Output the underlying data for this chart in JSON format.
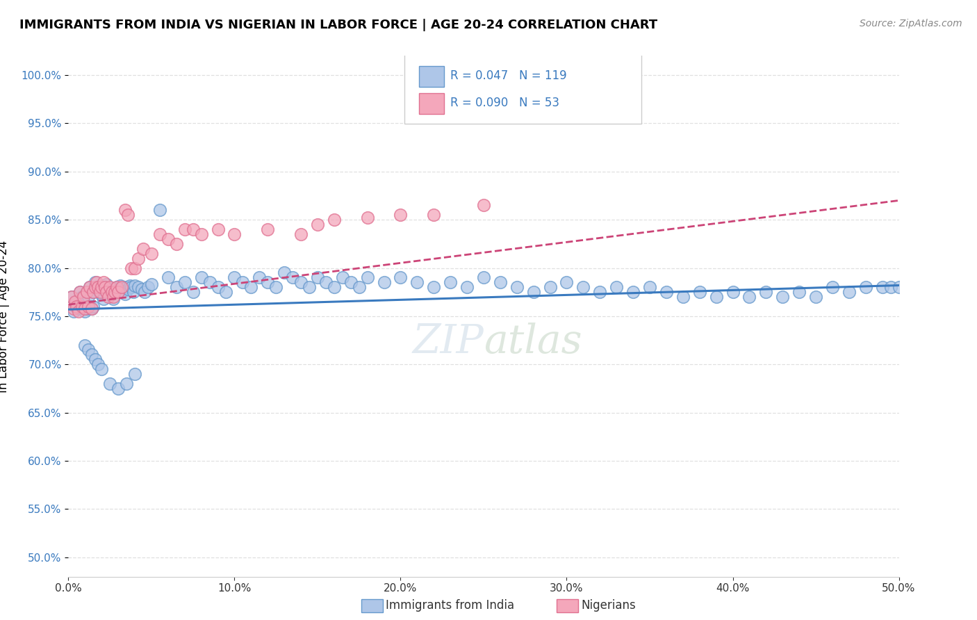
{
  "title": "IMMIGRANTS FROM INDIA VS NIGERIAN IN LABOR FORCE | AGE 20-24 CORRELATION CHART",
  "source": "Source: ZipAtlas.com",
  "ylabel": "In Labor Force | Age 20-24",
  "xlim": [
    0.0,
    0.5
  ],
  "ylim": [
    0.48,
    1.02
  ],
  "yticks": [
    0.5,
    0.55,
    0.6,
    0.65,
    0.7,
    0.75,
    0.8,
    0.85,
    0.9,
    0.95,
    1.0
  ],
  "ytick_labels": [
    "50.0%",
    "55.0%",
    "60.0%",
    "65.0%",
    "70.0%",
    "75.0%",
    "80.0%",
    "85.0%",
    "90.0%",
    "95.0%",
    "100.0%"
  ],
  "xticks": [
    0.0,
    0.1,
    0.2,
    0.3,
    0.4,
    0.5
  ],
  "xtick_labels": [
    "0.0%",
    "10.0%",
    "20.0%",
    "30.0%",
    "40.0%",
    "50.0%"
  ],
  "india_color": "#aec6e8",
  "nigeria_color": "#f4a7bb",
  "india_edge": "#6699cc",
  "nigeria_edge": "#e07090",
  "trendline_india_color": "#3a7abf",
  "trendline_nigeria_color": "#cc4477",
  "legend_india_label": "Immigrants from India",
  "legend_nigeria_label": "Nigerians",
  "R_india": 0.047,
  "N_india": 119,
  "R_nigeria": 0.09,
  "N_nigeria": 53,
  "india_x": [
    0.002,
    0.003,
    0.004,
    0.005,
    0.006,
    0.007,
    0.007,
    0.008,
    0.008,
    0.009,
    0.01,
    0.01,
    0.011,
    0.011,
    0.012,
    0.013,
    0.013,
    0.014,
    0.015,
    0.015,
    0.016,
    0.017,
    0.018,
    0.019,
    0.02,
    0.021,
    0.022,
    0.023,
    0.024,
    0.025,
    0.026,
    0.027,
    0.028,
    0.029,
    0.03,
    0.031,
    0.032,
    0.033,
    0.034,
    0.035,
    0.036,
    0.037,
    0.038,
    0.039,
    0.04,
    0.042,
    0.044,
    0.046,
    0.048,
    0.05,
    0.055,
    0.06,
    0.065,
    0.07,
    0.075,
    0.08,
    0.085,
    0.09,
    0.095,
    0.1,
    0.105,
    0.11,
    0.115,
    0.12,
    0.125,
    0.13,
    0.135,
    0.14,
    0.145,
    0.15,
    0.155,
    0.16,
    0.165,
    0.17,
    0.175,
    0.18,
    0.19,
    0.2,
    0.21,
    0.22,
    0.23,
    0.24,
    0.25,
    0.26,
    0.27,
    0.28,
    0.29,
    0.3,
    0.31,
    0.32,
    0.33,
    0.34,
    0.35,
    0.36,
    0.37,
    0.38,
    0.39,
    0.4,
    0.41,
    0.42,
    0.43,
    0.44,
    0.45,
    0.46,
    0.47,
    0.48,
    0.49,
    0.495,
    0.5,
    0.01,
    0.012,
    0.014,
    0.016,
    0.018,
    0.02,
    0.025,
    0.03,
    0.035,
    0.04
  ],
  "india_y": [
    0.77,
    0.755,
    0.76,
    0.765,
    0.758,
    0.775,
    0.76,
    0.77,
    0.758,
    0.765,
    0.755,
    0.76,
    0.775,
    0.758,
    0.77,
    0.76,
    0.78,
    0.758,
    0.775,
    0.76,
    0.785,
    0.78,
    0.778,
    0.775,
    0.772,
    0.768,
    0.78,
    0.783,
    0.778,
    0.775,
    0.772,
    0.768,
    0.775,
    0.78,
    0.778,
    0.782,
    0.779,
    0.776,
    0.773,
    0.78,
    0.778,
    0.782,
    0.78,
    0.775,
    0.782,
    0.78,
    0.778,
    0.775,
    0.78,
    0.783,
    0.86,
    0.79,
    0.78,
    0.785,
    0.775,
    0.79,
    0.785,
    0.78,
    0.775,
    0.79,
    0.785,
    0.78,
    0.79,
    0.785,
    0.78,
    0.795,
    0.79,
    0.785,
    0.78,
    0.79,
    0.785,
    0.78,
    0.79,
    0.785,
    0.78,
    0.79,
    0.785,
    0.79,
    0.785,
    0.78,
    0.785,
    0.78,
    0.79,
    0.785,
    0.78,
    0.775,
    0.78,
    0.785,
    0.78,
    0.775,
    0.78,
    0.775,
    0.78,
    0.775,
    0.77,
    0.775,
    0.77,
    0.775,
    0.77,
    0.775,
    0.77,
    0.775,
    0.77,
    0.78,
    0.775,
    0.78,
    0.78,
    0.78,
    0.78,
    0.72,
    0.715,
    0.71,
    0.705,
    0.7,
    0.695,
    0.68,
    0.675,
    0.68,
    0.69
  ],
  "nigeria_x": [
    0.002,
    0.003,
    0.004,
    0.005,
    0.006,
    0.007,
    0.008,
    0.009,
    0.01,
    0.011,
    0.012,
    0.013,
    0.014,
    0.015,
    0.016,
    0.017,
    0.018,
    0.019,
    0.02,
    0.021,
    0.022,
    0.023,
    0.024,
    0.025,
    0.026,
    0.027,
    0.028,
    0.029,
    0.03,
    0.032,
    0.034,
    0.036,
    0.038,
    0.04,
    0.042,
    0.045,
    0.05,
    0.055,
    0.06,
    0.065,
    0.07,
    0.075,
    0.08,
    0.09,
    0.1,
    0.12,
    0.14,
    0.15,
    0.16,
    0.18,
    0.2,
    0.22,
    0.25
  ],
  "nigeria_y": [
    0.77,
    0.758,
    0.765,
    0.76,
    0.755,
    0.775,
    0.76,
    0.77,
    0.758,
    0.775,
    0.76,
    0.78,
    0.758,
    0.775,
    0.78,
    0.785,
    0.78,
    0.775,
    0.78,
    0.785,
    0.78,
    0.775,
    0.77,
    0.78,
    0.775,
    0.77,
    0.775,
    0.78,
    0.775,
    0.78,
    0.86,
    0.855,
    0.8,
    0.8,
    0.81,
    0.82,
    0.815,
    0.835,
    0.83,
    0.825,
    0.84,
    0.84,
    0.835,
    0.84,
    0.835,
    0.84,
    0.835,
    0.845,
    0.85,
    0.852,
    0.855,
    0.855,
    0.865
  ],
  "background_color": "#ffffff",
  "grid_color": "#e0e0e0",
  "watermark": "ZIPatlas"
}
